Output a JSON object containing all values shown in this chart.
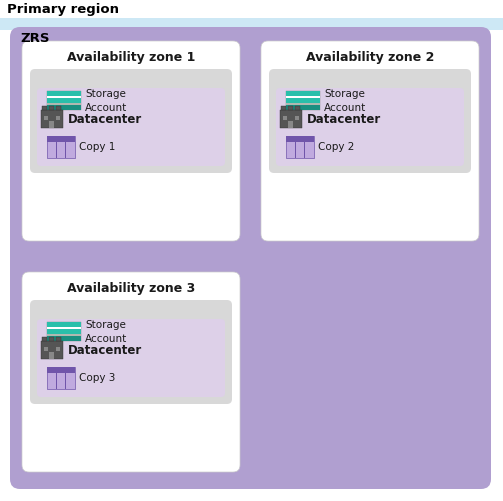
{
  "title": "Primary region",
  "zrs_label": "ZRS",
  "zones": [
    {
      "label": "Availability zone 1",
      "copy": "Copy 1"
    },
    {
      "label": "Availability zone 2",
      "copy": "Copy 2"
    },
    {
      "label": "Availability zone 3",
      "copy": "Copy 3"
    }
  ],
  "datacenter_label": "Datacenter",
  "storage_label": "Storage\nAccount",
  "bg_white": "#ffffff",
  "bg_outer": "#cde8f5",
  "bg_zrs": "#b09fd0",
  "bg_zone": "#ffffff",
  "bg_datacenter_inner": "#d8d8d8",
  "bg_storage_box": "#ddd0e8",
  "title_color": "#000000",
  "zrs_label_color": "#000000",
  "zone_label_color": "#1a1a1a",
  "datacenter_text_color": "#1a1a1a",
  "copy_text_color": "#1a1a1a",
  "storage_text_color": "#1a1a1a",
  "teal1": "#2abfaa",
  "teal2": "#1a8f80",
  "gray_strip": "#b0b8b0",
  "white_strip": "#ffffff",
  "purple_dark": "#7055aa",
  "purple_light": "#c0aadf"
}
